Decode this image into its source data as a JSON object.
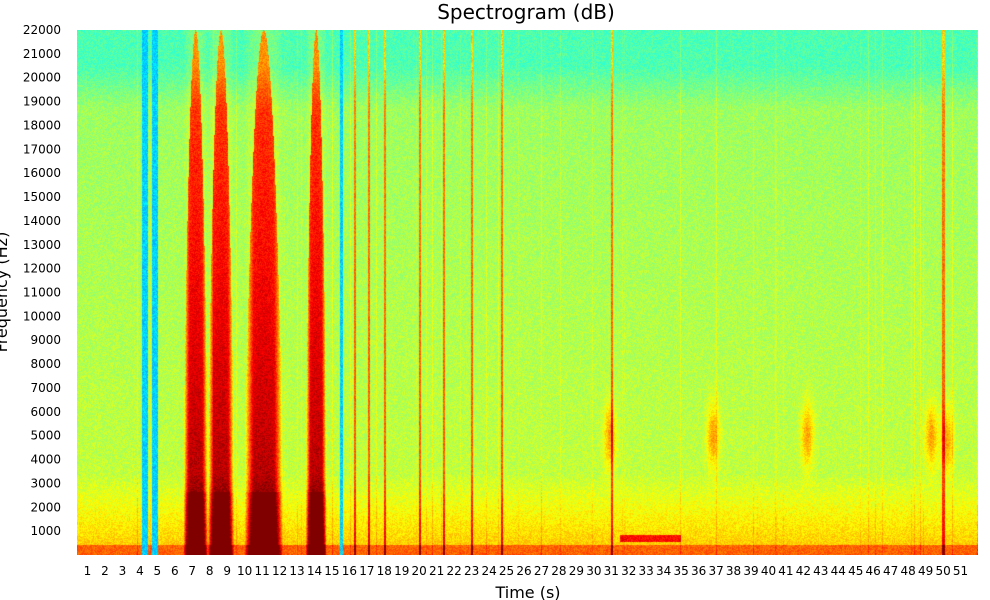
{
  "chart_data": {
    "type": "heatmap",
    "title": "Spectrogram (dB)",
    "xlabel": "Time (s)",
    "ylabel": "Frequency (Hz)",
    "xlim": [
      0.4,
      52.0
    ],
    "ylim": [
      0,
      22000
    ],
    "x_ticks": [
      1,
      2,
      3,
      4,
      5,
      6,
      7,
      8,
      9,
      10,
      11,
      12,
      13,
      14,
      15,
      16,
      17,
      18,
      19,
      20,
      21,
      22,
      23,
      24,
      25,
      26,
      27,
      28,
      29,
      30,
      31,
      32,
      33,
      34,
      35,
      36,
      37,
      38,
      39,
      40,
      41,
      42,
      43,
      44,
      45,
      46,
      47,
      48,
      49,
      50,
      51
    ],
    "y_ticks": [
      1000,
      2000,
      3000,
      4000,
      5000,
      6000,
      7000,
      8000,
      9000,
      10000,
      11000,
      12000,
      13000,
      14000,
      15000,
      16000,
      17000,
      18000,
      19000,
      20000,
      21000,
      22000
    ],
    "colormap": "jet",
    "background_colors": {
      "high_freq": "#3cf5c0",
      "mid_freq": "#8df07a",
      "low_freq": "#ecf238"
    },
    "events": [
      {
        "type": "quiet",
        "start": 4.15,
        "end": 4.45
      },
      {
        "type": "quiet",
        "start": 4.7,
        "end": 5.05
      },
      {
        "type": "quiet",
        "start": 15.45,
        "end": 15.65
      },
      {
        "type": "burst",
        "start": 6.5,
        "end": 7.9
      },
      {
        "type": "burst",
        "start": 7.9,
        "end": 9.4
      },
      {
        "type": "burst",
        "start": 10.0,
        "end": 12.2
      },
      {
        "type": "burst",
        "start": 13.5,
        "end": 14.7
      },
      {
        "type": "click",
        "time": 16.3
      },
      {
        "type": "click",
        "time": 17.1
      },
      {
        "type": "click",
        "time": 18.0
      },
      {
        "type": "click",
        "time": 20.0
      },
      {
        "type": "click",
        "time": 21.4
      },
      {
        "type": "click",
        "time": 23.0
      },
      {
        "type": "click",
        "time": 24.7
      },
      {
        "type": "click",
        "time": 31.0
      },
      {
        "type": "click",
        "time": 50.0
      },
      {
        "type": "blob",
        "time": 30.9,
        "freq": 5000
      },
      {
        "type": "blob",
        "time": 36.8,
        "freq": 5000
      },
      {
        "type": "blob",
        "time": 42.2,
        "freq": 5000
      },
      {
        "type": "blob",
        "time": 49.3,
        "freq": 5000
      },
      {
        "type": "blob",
        "time": 50.2,
        "freq": 4800
      },
      {
        "type": "tone",
        "start": 31.5,
        "end": 35.0,
        "freq": 700
      }
    ]
  }
}
